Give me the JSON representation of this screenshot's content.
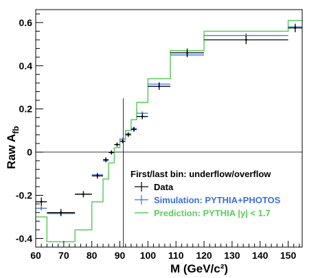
{
  "chart_data": {
    "type": "line",
    "xlabel": "M  (GeV/c²)",
    "ylabel": "Raw A",
    "ylabel_sub": "fb",
    "xlim": [
      60,
      155
    ],
    "ylim": [
      -0.44,
      0.66
    ],
    "x_ticks": [
      60,
      70,
      80,
      90,
      100,
      110,
      120,
      130,
      140,
      150
    ],
    "y_ticks": [
      -0.4,
      -0.2,
      0,
      0.2,
      0.4,
      0.6
    ],
    "y_tick_labels": [
      "-0.4",
      "-0.2",
      "0",
      "0.2",
      "0.4",
      "0.6"
    ],
    "legend_header": "First/last bin: underflow/overflow",
    "reference_lines": {
      "x": 91.2,
      "y": 0
    },
    "series": [
      {
        "name": "Data",
        "style": "points",
        "color": "#000000",
        "bins": [
          [
            60,
            64,
            -0.23,
            0.015
          ],
          [
            64,
            74,
            -0.28,
            0.012
          ],
          [
            74,
            80,
            -0.195,
            0.01
          ],
          [
            80,
            84,
            -0.11,
            0.008
          ],
          [
            84,
            86,
            -0.035,
            0.006
          ],
          [
            86,
            88,
            -0.002,
            0.005
          ],
          [
            88,
            90,
            0.035,
            0.005
          ],
          [
            90,
            92,
            0.05,
            0.004
          ],
          [
            92,
            94,
            0.08,
            0.005
          ],
          [
            94,
            96,
            0.105,
            0.006
          ],
          [
            96,
            100,
            0.165,
            0.008
          ],
          [
            100,
            108,
            0.305,
            0.012
          ],
          [
            108,
            120,
            0.46,
            0.015
          ],
          [
            120,
            150,
            0.52,
            0.015
          ],
          [
            150,
            155,
            0.575,
            0.015
          ]
        ]
      },
      {
        "name": "Simulation: PYTHIA+PHOTOS",
        "style": "points",
        "color": "#3a6ee0",
        "bins": [
          [
            60,
            64,
            -0.26,
            0.005
          ],
          [
            64,
            74,
            -0.285,
            0.004
          ],
          [
            74,
            80,
            -0.195,
            0.004
          ],
          [
            80,
            84,
            -0.105,
            0.004
          ],
          [
            84,
            86,
            -0.04,
            0.003
          ],
          [
            86,
            88,
            0.0,
            0.003
          ],
          [
            88,
            90,
            0.035,
            0.003
          ],
          [
            90,
            92,
            0.06,
            0.003
          ],
          [
            92,
            94,
            0.085,
            0.003
          ],
          [
            94,
            96,
            0.11,
            0.003
          ],
          [
            96,
            100,
            0.18,
            0.004
          ],
          [
            100,
            108,
            0.315,
            0.005
          ],
          [
            108,
            120,
            0.45,
            0.006
          ],
          [
            120,
            150,
            0.54,
            0.006
          ],
          [
            150,
            155,
            0.58,
            0.006
          ]
        ]
      },
      {
        "name": "Prediction: PYTHIA |y| < 1.7",
        "style": "step",
        "color": "#5ccc5c",
        "edges": [
          60,
          64,
          74,
          80,
          84,
          86,
          88,
          90,
          92,
          94,
          96,
          100,
          108,
          120,
          150,
          155
        ],
        "values": [
          -0.3,
          -0.415,
          -0.36,
          -0.23,
          -0.125,
          -0.05,
          0.02,
          0.06,
          0.1,
          0.15,
          0.23,
          0.34,
          0.47,
          0.56,
          0.61
        ]
      }
    ]
  }
}
